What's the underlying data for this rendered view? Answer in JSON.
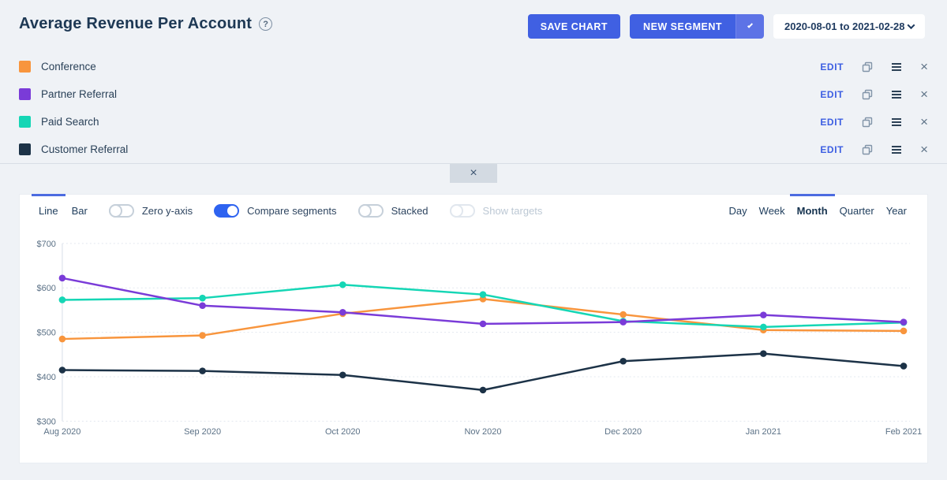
{
  "header": {
    "title": "Average Revenue Per Account",
    "help_glyph": "?",
    "save_button": "SAVE CHART",
    "new_segment_button": "NEW SEGMENT",
    "date_range": "2020-08-01 to 2021-02-28"
  },
  "icons": {
    "close": "×"
  },
  "segments": [
    {
      "name": "Conference",
      "color": "#f8953d",
      "edit_label": "EDIT"
    },
    {
      "name": "Partner Referral",
      "color": "#7a3bd8",
      "edit_label": "EDIT"
    },
    {
      "name": "Paid Search",
      "color": "#15d6b5",
      "edit_label": "EDIT"
    },
    {
      "name": "Customer Referral",
      "color": "#1c3247",
      "edit_label": "EDIT"
    }
  ],
  "controls": {
    "chart_type_tabs": [
      {
        "label": "Line",
        "active": true
      },
      {
        "label": "Bar",
        "active": false
      }
    ],
    "toggles": [
      {
        "label": "Zero y-axis",
        "state": "off"
      },
      {
        "label": "Compare segments",
        "state": "on"
      },
      {
        "label": "Stacked",
        "state": "off"
      },
      {
        "label": "Show targets",
        "state": "disabled"
      }
    ],
    "granularity_tabs": [
      {
        "label": "Day",
        "active": false
      },
      {
        "label": "Week",
        "active": false
      },
      {
        "label": "Month",
        "active": true
      },
      {
        "label": "Quarter",
        "active": false
      },
      {
        "label": "Year",
        "active": false
      }
    ]
  },
  "chart_data": {
    "type": "line",
    "title": "Average Revenue Per Account",
    "categories": [
      "Aug 2020",
      "Sep 2020",
      "Oct 2020",
      "Nov 2020",
      "Dec 2020",
      "Jan 2021",
      "Feb 2021"
    ],
    "series": [
      {
        "name": "Conference",
        "color": "#f8953d",
        "values": [
          485,
          493,
          542,
          575,
          540,
          505,
          503
        ]
      },
      {
        "name": "Paid Search",
        "color": "#15d6b5",
        "values": [
          573,
          577,
          607,
          585,
          525,
          512,
          522
        ]
      },
      {
        "name": "Customer Referral",
        "color": "#1c3247",
        "values": [
          415,
          413,
          404,
          370,
          435,
          452,
          424
        ]
      },
      {
        "name": "Partner Referral",
        "color": "#7a3bd8",
        "values": [
          622,
          560,
          545,
          519,
          523,
          539,
          523
        ]
      }
    ],
    "ylim": [
      300,
      700
    ],
    "y_tick_step": 100,
    "y_ticks": [
      "$300",
      "$400",
      "$500",
      "$600",
      "$700"
    ],
    "grid": "horizontal-dotted",
    "legend_position": "top-list"
  },
  "colors": {
    "page_bg": "#eff2f6",
    "panel_bg": "#ffffff",
    "accent_blue": "#4060e2",
    "toggle_on_blue": "#2e63f0",
    "edit_link_blue": "#3c5ee2",
    "tab_indicator_blue": "#4c6be0",
    "axis_text": "#5b7186",
    "gridline": "#e3e8ef"
  }
}
